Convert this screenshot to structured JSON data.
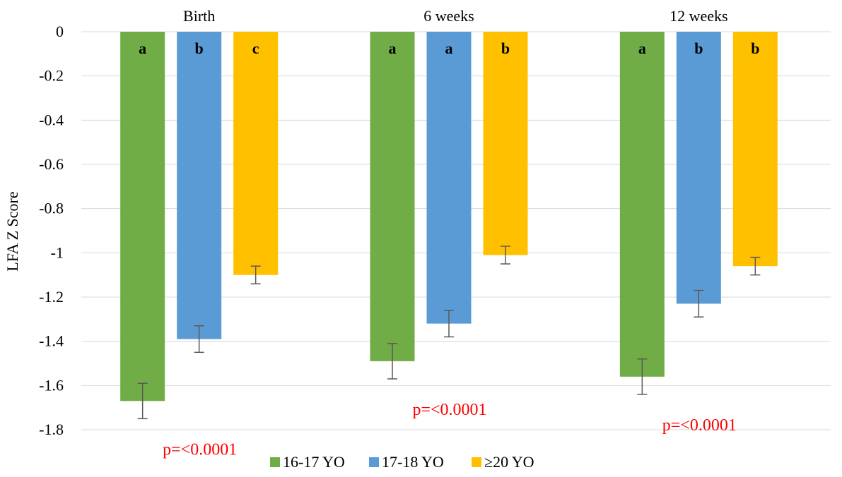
{
  "chart_data": {
    "type": "bar",
    "categories": [
      "Birth",
      "6 weeks",
      "12 weeks"
    ],
    "ylabel": "LFA Z Score",
    "ylim": [
      -1.8,
      0
    ],
    "yticks": [
      "0",
      "-0.2",
      "-0.4",
      "-0.6",
      "-0.8",
      "-1",
      "-1.2",
      "-1.4",
      "-1.6",
      "-1.8"
    ],
    "grid": true,
    "legend_position": "bottom",
    "series": [
      {
        "name": "16-17 YO",
        "color": "#70AD47",
        "values": [
          -1.67,
          -1.49,
          -1.56
        ],
        "errors": [
          0.08,
          0.08,
          0.08
        ],
        "letters": [
          "a",
          "a",
          "a"
        ]
      },
      {
        "name": "17-18 YO",
        "color": "#5B9BD5",
        "values": [
          -1.39,
          -1.32,
          -1.23
        ],
        "errors": [
          0.06,
          0.06,
          0.06
        ],
        "letters": [
          "b",
          "a",
          "b"
        ]
      },
      {
        "name": "≥20 YO",
        "color": "#FFC000",
        "values": [
          -1.1,
          -1.01,
          -1.06
        ],
        "errors": [
          0.04,
          0.04,
          0.04
        ],
        "letters": [
          "c",
          "b",
          "b"
        ]
      }
    ],
    "annotations": [
      "p=<0.0001",
      "p=<0.0001",
      "p=<0.0001"
    ],
    "annotation_color": "#FF0000"
  }
}
